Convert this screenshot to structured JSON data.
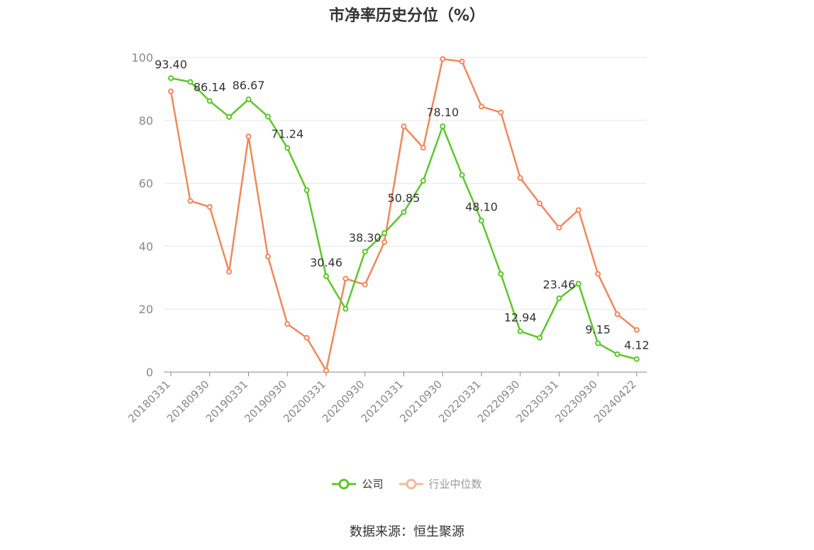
{
  "title": "市净率历史分位（%）",
  "source": "数据来源：恒生聚源",
  "colors": {
    "company": "#5cc72a",
    "industry": "#f0885a",
    "industry_legend": "#f6b89c",
    "grid": "#e6e6e6",
    "axis": "#888888"
  },
  "chart_data": {
    "type": "line",
    "title": "市净率历史分位（%）",
    "x": [
      "20180331",
      "20180630",
      "20180930",
      "20181231",
      "20190331",
      "20190630",
      "20190930",
      "20191231",
      "20200331",
      "20200630",
      "20200930",
      "20201231",
      "20210331",
      "20210630",
      "20210930",
      "20211231",
      "20220331",
      "20220630",
      "20220930",
      "20221231",
      "20230331",
      "20230630",
      "20230930",
      "20231231",
      "20240422"
    ],
    "x_tick_labels": [
      "20180331",
      "20180930",
      "20190331",
      "20190930",
      "20200331",
      "20200930",
      "20210331",
      "20210930",
      "20220331",
      "20220930",
      "20230331",
      "20230930",
      "20240422"
    ],
    "y_ticks": [
      0,
      20,
      40,
      60,
      80,
      100
    ],
    "ylim": [
      0,
      100
    ],
    "grid": true,
    "legend_position": "bottom",
    "series": [
      {
        "name": "公司",
        "values": [
          93.4,
          92.2,
          86.14,
          81.1,
          86.67,
          81.2,
          71.24,
          57.8,
          30.46,
          20.1,
          38.3,
          44.2,
          50.85,
          60.8,
          78.1,
          62.6,
          48.1,
          31.2,
          12.94,
          10.9,
          23.46,
          28.1,
          9.15,
          5.7,
          4.12
        ],
        "labels": [
          "93.40",
          "",
          "86.14",
          "",
          "86.67",
          "",
          "71.24",
          "",
          "30.46",
          "",
          "38.30",
          "",
          "50.85",
          "",
          "78.10",
          "",
          "48.10",
          "",
          "12.94",
          "",
          "23.46",
          "",
          "9.15",
          "",
          "4.12"
        ]
      },
      {
        "name": "行业中位数",
        "values": [
          89.2,
          54.4,
          52.5,
          31.9,
          74.9,
          36.7,
          15.3,
          10.9,
          0.5,
          29.7,
          27.8,
          41.3,
          78.1,
          71.3,
          99.5,
          98.7,
          84.4,
          82.5,
          61.7,
          53.6,
          45.9,
          51.5,
          31.2,
          18.4,
          13.4
        ]
      }
    ]
  }
}
